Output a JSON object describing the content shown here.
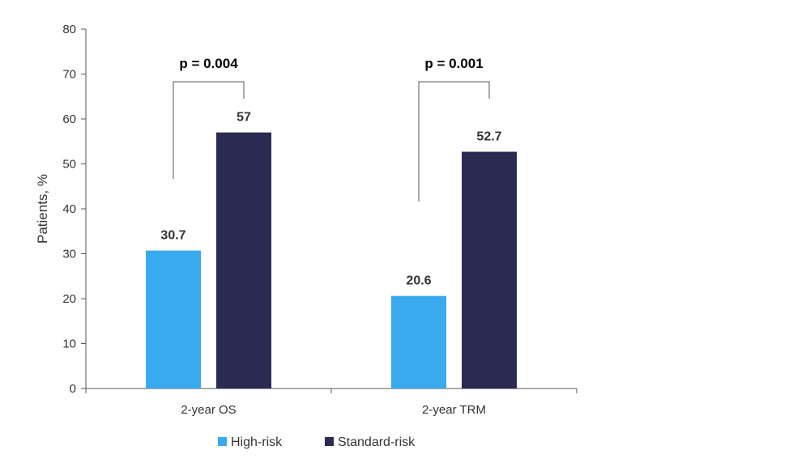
{
  "chart_data": {
    "type": "bar",
    "categories": [
      "2-year OS",
      "2-year TRM"
    ],
    "series": [
      {
        "name": "High-risk",
        "color": "#3aaaee",
        "values": [
          30.7,
          20.6
        ]
      },
      {
        "name": "Standard-risk",
        "color": "#2a2a52",
        "values": [
          57,
          52.7
        ]
      }
    ],
    "ylabel": "Patients, %",
    "ylim": [
      0,
      80
    ],
    "yticks": [
      0,
      10,
      20,
      30,
      40,
      50,
      60,
      70,
      80
    ],
    "annotations": [
      {
        "category_index": 0,
        "text": "p = 0.004"
      },
      {
        "category_index": 1,
        "text": "p = 0.001"
      }
    ],
    "legend": "bottom-center",
    "grid": false
  }
}
